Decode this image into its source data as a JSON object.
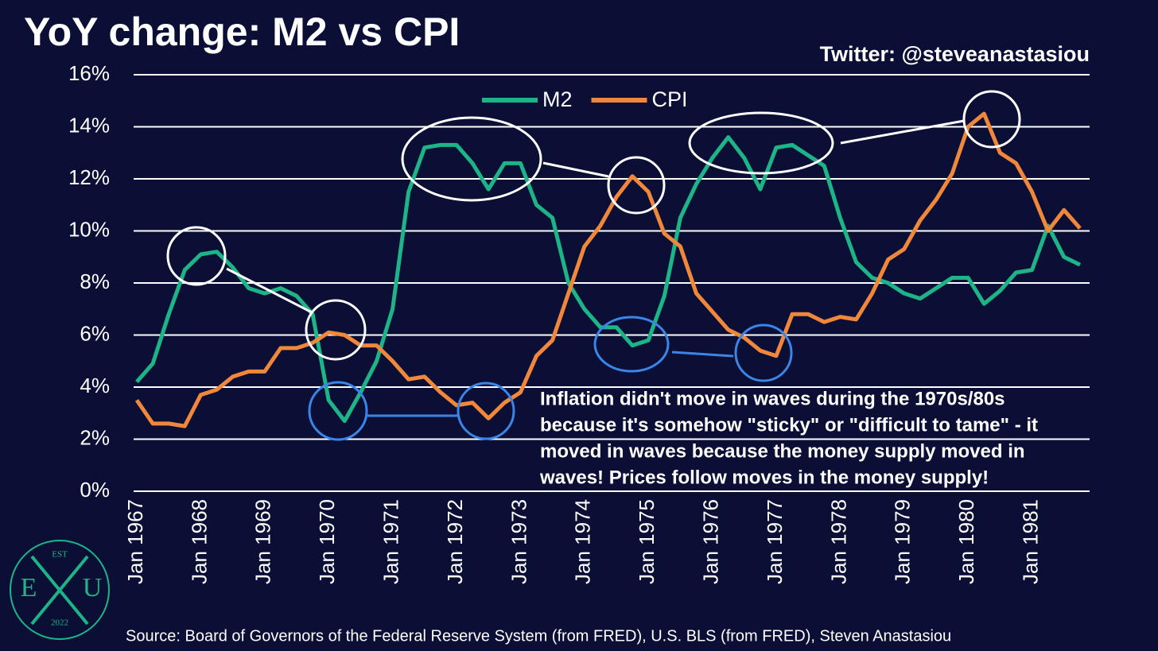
{
  "chart_data": {
    "type": "line",
    "title": "YoY change: M2 vs CPI",
    "credit": "Twitter: @steveanastasiou",
    "source": "Source: Board of Governors of the Federal Reserve System (from FRED), U.S. BLS (from FRED), Steven Anastasiou",
    "annotation": [
      "Inflation didn't move in waves during the 1970s/80s",
      "because it's somehow \"sticky\" or \"difficult to tame\" - it",
      "moved in waves because the money supply moved in",
      "waves! Prices follow moves in the money supply!"
    ],
    "logo": {
      "top": "EST",
      "left": "E",
      "right": "U",
      "bottom": "2022"
    },
    "categories": [
      "Jan 1967",
      null,
      null,
      null,
      "Jan 1968",
      null,
      null,
      null,
      "Jan 1969",
      null,
      null,
      null,
      "Jan 1970",
      null,
      null,
      null,
      "Jan 1971",
      null,
      null,
      null,
      "Jan 1972",
      null,
      null,
      null,
      "Jan 1973",
      null,
      null,
      null,
      "Jan 1974",
      null,
      null,
      null,
      "Jan 1975",
      null,
      null,
      null,
      "Jan 1976",
      null,
      null,
      null,
      "Jan 1977",
      null,
      null,
      null,
      "Jan 1978",
      null,
      null,
      null,
      "Jan 1979",
      null,
      null,
      null,
      "Jan 1980",
      null,
      null,
      null,
      "Jan 1981",
      null,
      null,
      null
    ],
    "series": [
      {
        "name": "M2",
        "color": "#1db587",
        "values": [
          4.2,
          4.9,
          6.8,
          8.5,
          9.1,
          9.2,
          8.6,
          7.8,
          7.6,
          7.8,
          7.5,
          6.8,
          3.5,
          2.7,
          3.8,
          5.0,
          7.0,
          11.5,
          13.2,
          13.3,
          13.3,
          12.6,
          11.6,
          12.6,
          12.6,
          11.0,
          10.5,
          8.0,
          7.0,
          6.3,
          6.3,
          5.6,
          5.8,
          7.5,
          10.5,
          11.8,
          12.8,
          13.6,
          12.8,
          11.6,
          13.2,
          13.3,
          12.9,
          12.5,
          10.5,
          8.8,
          8.2,
          8.0,
          7.6,
          7.4,
          7.8,
          8.2,
          8.2,
          7.2,
          7.7,
          8.4,
          8.5,
          10.2,
          9.0,
          8.7
        ]
      },
      {
        "name": "CPI",
        "color": "#f0873a",
        "values": [
          3.5,
          2.6,
          2.6,
          2.5,
          3.7,
          3.9,
          4.4,
          4.6,
          4.6,
          5.5,
          5.5,
          5.7,
          6.1,
          6.0,
          5.6,
          5.6,
          5.0,
          4.3,
          4.4,
          3.8,
          3.3,
          3.4,
          2.8,
          3.4,
          3.8,
          5.2,
          5.8,
          7.6,
          9.4,
          10.2,
          11.3,
          12.1,
          11.5,
          9.9,
          9.4,
          7.6,
          6.9,
          6.2,
          5.9,
          5.4,
          5.2,
          6.8,
          6.8,
          6.5,
          6.7,
          6.6,
          7.6,
          8.9,
          9.3,
          10.4,
          11.2,
          12.2,
          14.0,
          14.5,
          13.0,
          12.6,
          11.5,
          10.0,
          10.8,
          10.1
        ]
      }
    ],
    "ylim": [
      0,
      16
    ],
    "yticks": [
      {
        "value": 0,
        "label": "0%"
      },
      {
        "value": 2,
        "label": "2%"
      },
      {
        "value": 4,
        "label": "4%"
      },
      {
        "value": 6,
        "label": "6%"
      },
      {
        "value": 8,
        "label": "8%"
      },
      {
        "value": 10,
        "label": "10%"
      },
      {
        "value": 12,
        "label": "12%"
      },
      {
        "value": 14,
        "label": "14%"
      },
      {
        "value": 16,
        "label": "16%"
      }
    ],
    "grid": true,
    "legend": "top"
  }
}
